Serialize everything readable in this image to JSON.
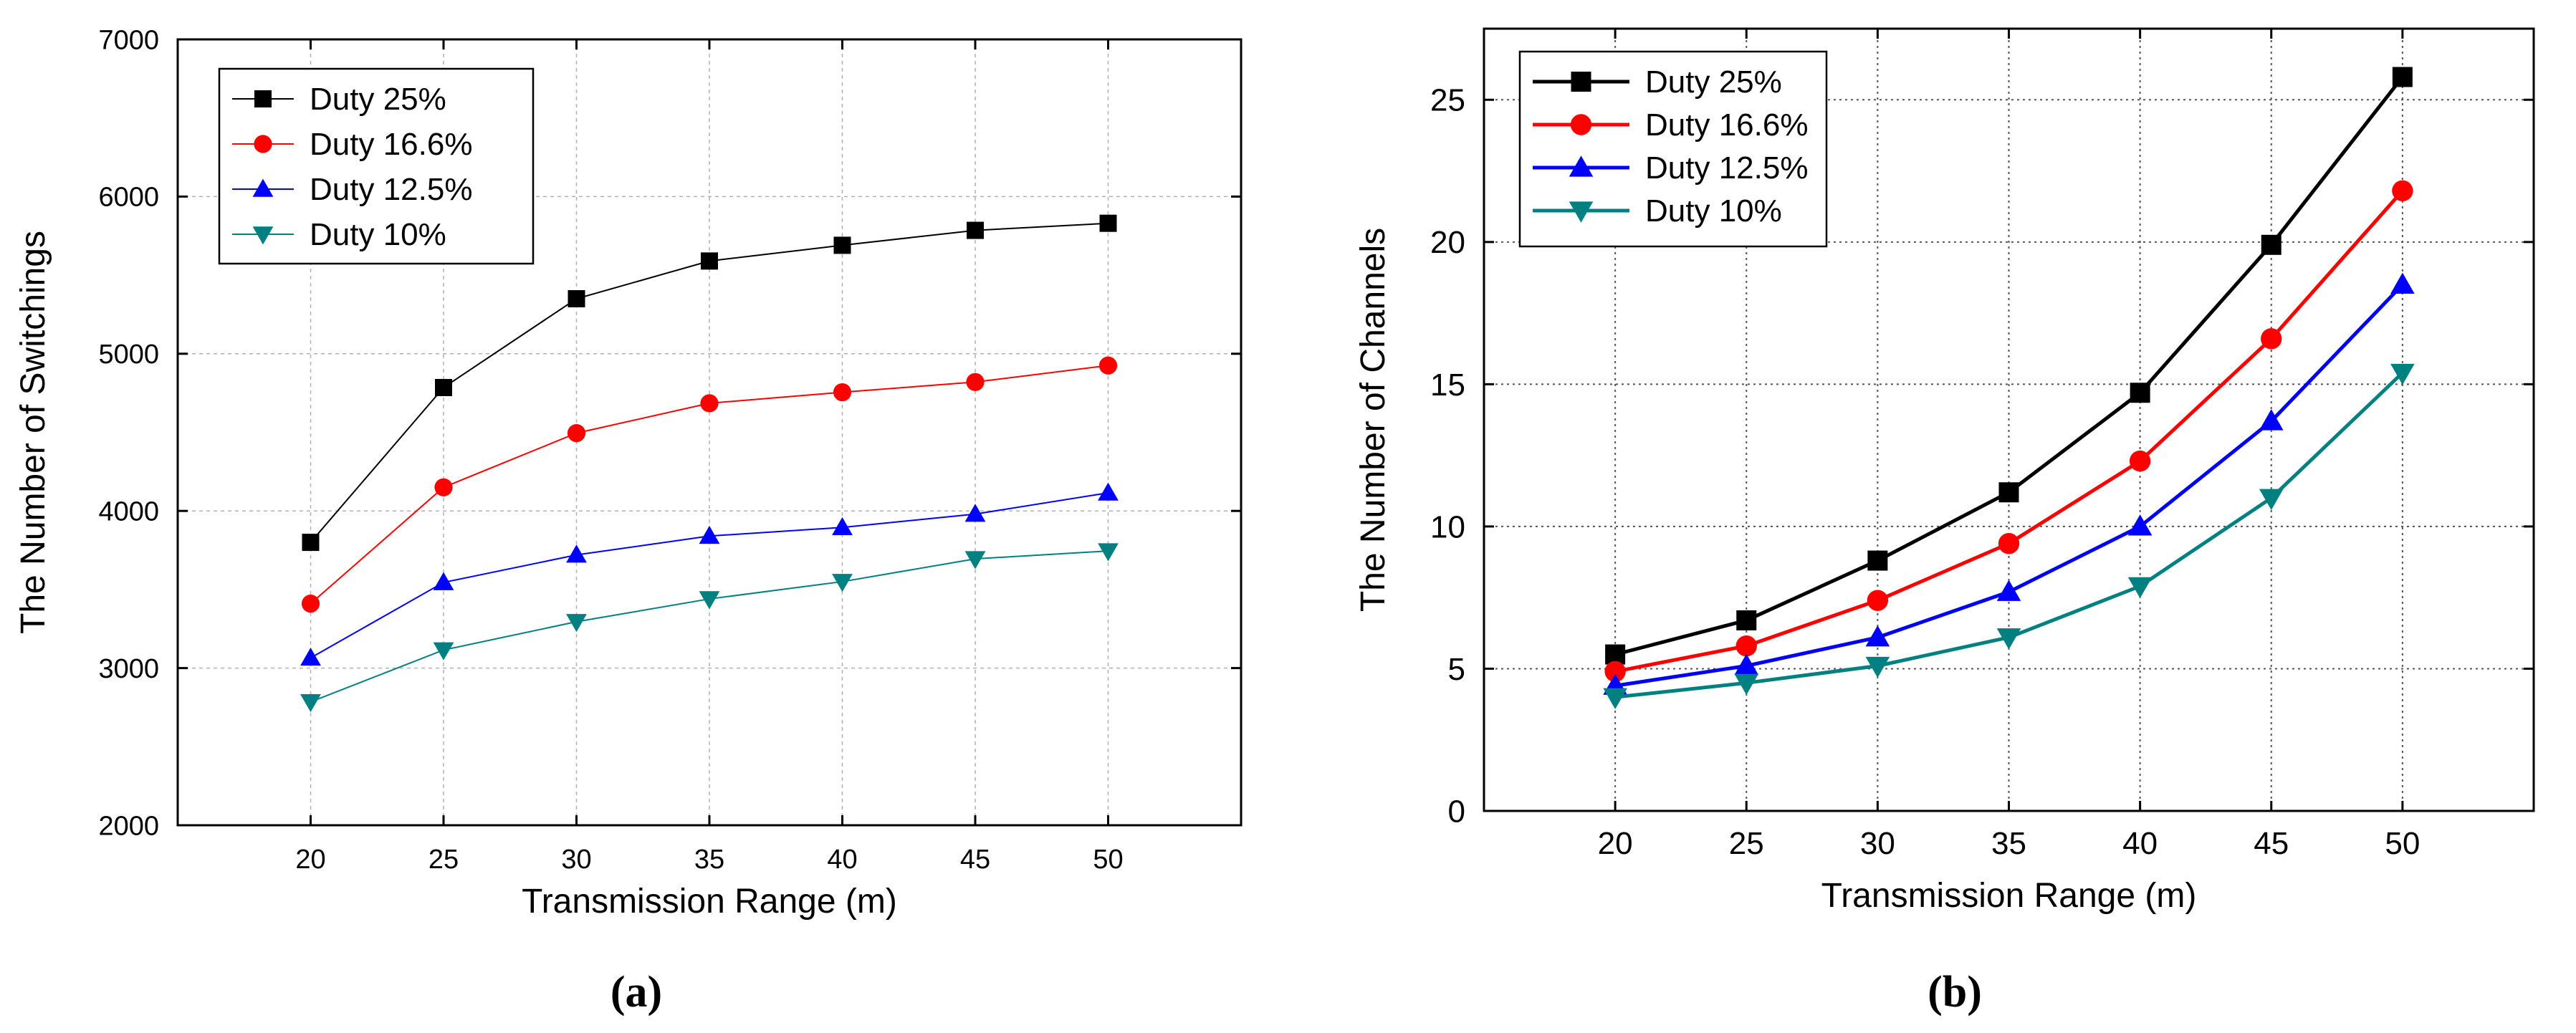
{
  "chart_data": [
    {
      "id": "a",
      "type": "line",
      "caption": "(a)",
      "title": "",
      "xlabel": "Transmission Range (m)",
      "ylabel": "The Number of Switchings",
      "x": [
        20,
        25,
        30,
        35,
        40,
        45,
        50
      ],
      "xlim": [
        15,
        55
      ],
      "ylim": [
        2000,
        7000
      ],
      "xticks": [
        20,
        25,
        30,
        35,
        40,
        45,
        50
      ],
      "yticks": [
        2000,
        3000,
        4000,
        5000,
        6000,
        7000
      ],
      "grid": true,
      "legend_position": "top-left",
      "series": [
        {
          "name": "Duty 25%",
          "color": "#000000",
          "marker": "square",
          "values": [
            3800,
            4785,
            5350,
            5590,
            5690,
            5785,
            5830
          ]
        },
        {
          "name": "Duty 16.6%",
          "color": "#ff0000",
          "marker": "circle",
          "values": [
            3410,
            4150,
            4495,
            4685,
            4755,
            4820,
            4925
          ]
        },
        {
          "name": "Duty 12.5%",
          "color": "#0000ff",
          "marker": "triangle-up",
          "values": [
            3065,
            3545,
            3720,
            3840,
            3895,
            3980,
            4115
          ]
        },
        {
          "name": "Duty 10%",
          "color": "#008080",
          "marker": "triangle-down",
          "values": [
            2785,
            3115,
            3295,
            3440,
            3550,
            3695,
            3745
          ]
        }
      ]
    },
    {
      "id": "b",
      "type": "line",
      "caption": "(b)",
      "title": "",
      "xlabel": "Transmission Range (m)",
      "ylabel": "The Number of Channels",
      "x": [
        20,
        25,
        30,
        35,
        40,
        45,
        50
      ],
      "xlim": [
        15,
        55
      ],
      "ylim": [
        0,
        27.5
      ],
      "xticks": [
        20,
        25,
        30,
        35,
        40,
        45,
        50
      ],
      "yticks": [
        0,
        5,
        10,
        15,
        20,
        25
      ],
      "grid": true,
      "legend_position": "top-left",
      "series": [
        {
          "name": "Duty 25%",
          "color": "#000000",
          "marker": "square",
          "values": [
            5.5,
            6.7,
            8.8,
            11.2,
            14.7,
            19.9,
            25.8
          ]
        },
        {
          "name": "Duty 16.6%",
          "color": "#ff0000",
          "marker": "circle",
          "values": [
            4.9,
            5.8,
            7.4,
            9.4,
            12.3,
            16.6,
            21.8
          ]
        },
        {
          "name": "Duty 12.5%",
          "color": "#0000ff",
          "marker": "triangle-up",
          "values": [
            4.4,
            5.1,
            6.1,
            7.7,
            10.0,
            13.7,
            18.5
          ]
        },
        {
          "name": "Duty 10%",
          "color": "#008080",
          "marker": "triangle-down",
          "values": [
            4.0,
            4.5,
            5.1,
            6.1,
            7.9,
            11.0,
            15.4
          ]
        }
      ]
    }
  ]
}
